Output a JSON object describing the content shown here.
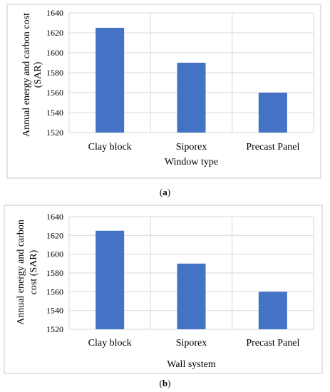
{
  "chart_data": [
    {
      "type": "bar",
      "categories": [
        "Clay block",
        "Siporex",
        "Precast Panel"
      ],
      "values": [
        1625,
        1590,
        1560
      ],
      "xlabel": "Window type",
      "ylabel_lines": [
        "Annual energy and carbon cost",
        "(SAR)"
      ],
      "ylim": [
        1520,
        1640
      ],
      "yticks": [
        1520,
        1540,
        1560,
        1580,
        1600,
        1620,
        1640
      ],
      "grid": true,
      "bar_color": "#4472C4",
      "caption": {
        "open": "(",
        "letter": "a",
        "close": ")"
      }
    },
    {
      "type": "bar",
      "categories": [
        "Clay block",
        "Siporex",
        "Precast Panel"
      ],
      "values": [
        1625,
        1590,
        1560
      ],
      "xlabel": "Wall system",
      "ylabel_lines": [
        "Annual energy and carbon",
        "cost  (SAR)"
      ],
      "ylim": [
        1520,
        1640
      ],
      "yticks": [
        1520,
        1540,
        1560,
        1580,
        1600,
        1620,
        1640
      ],
      "grid": true,
      "bar_color": "#4472C4",
      "caption": {
        "open": "(",
        "letter": "b",
        "close": ")"
      }
    }
  ],
  "colors": {
    "grid": "#d9d9d9",
    "border": "#c8c8c8",
    "bar": "#4472C4"
  }
}
